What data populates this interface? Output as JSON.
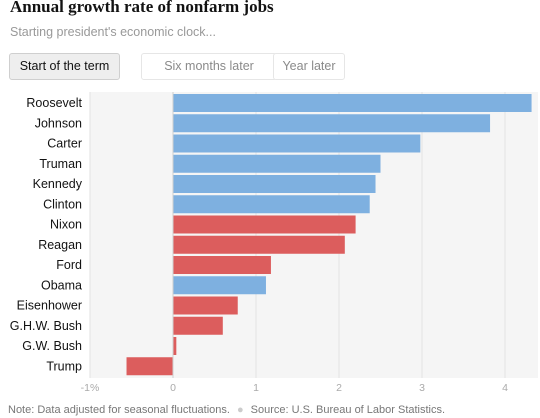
{
  "header": {
    "title": "Annual growth rate of nonfarm jobs",
    "subtitle": "Starting president's economic clock..."
  },
  "tabs": [
    {
      "label": "Start of the term",
      "active": true
    },
    {
      "label": "Six months later",
      "active": false
    },
    {
      "label": "Year later",
      "active": false
    }
  ],
  "footer": {
    "note": "Note: Data adjusted for seasonal fluctuations.",
    "source": "Source: U.S. Bureau of Labor Statistics."
  },
  "colors": {
    "democrat": "#7eb0e0",
    "republican": "#dc5d5d",
    "plot_background": "#f5f5f5",
    "axis_text": "#aaaaaa"
  },
  "chart_data": {
    "type": "bar",
    "orientation": "horizontal",
    "title": "Annual growth rate of nonfarm jobs",
    "subtitle": "Starting president's economic clock...",
    "xlabel": "",
    "ylabel": "",
    "xlim": [
      -1.05,
      4.4
    ],
    "x_ticks": [
      -1,
      0,
      1,
      2,
      3,
      4
    ],
    "x_tick_labels": [
      "-1%",
      "0",
      "1",
      "2",
      "3",
      "4"
    ],
    "grid": true,
    "legend": "none",
    "categories": [
      "Roosevelt",
      "Johnson",
      "Carter",
      "Truman",
      "Kennedy",
      "Clinton",
      "Nixon",
      "Reagan",
      "Ford",
      "Obama",
      "Eisenhower",
      "G.H.W. Bush",
      "G.W. Bush",
      "Trump"
    ],
    "values": [
      4.32,
      3.82,
      2.98,
      2.5,
      2.44,
      2.37,
      2.2,
      2.07,
      1.18,
      1.12,
      0.78,
      0.6,
      0.04,
      -0.56
    ],
    "party": [
      "D",
      "D",
      "D",
      "D",
      "D",
      "D",
      "R",
      "R",
      "R",
      "D",
      "R",
      "R",
      "R",
      "R"
    ]
  }
}
